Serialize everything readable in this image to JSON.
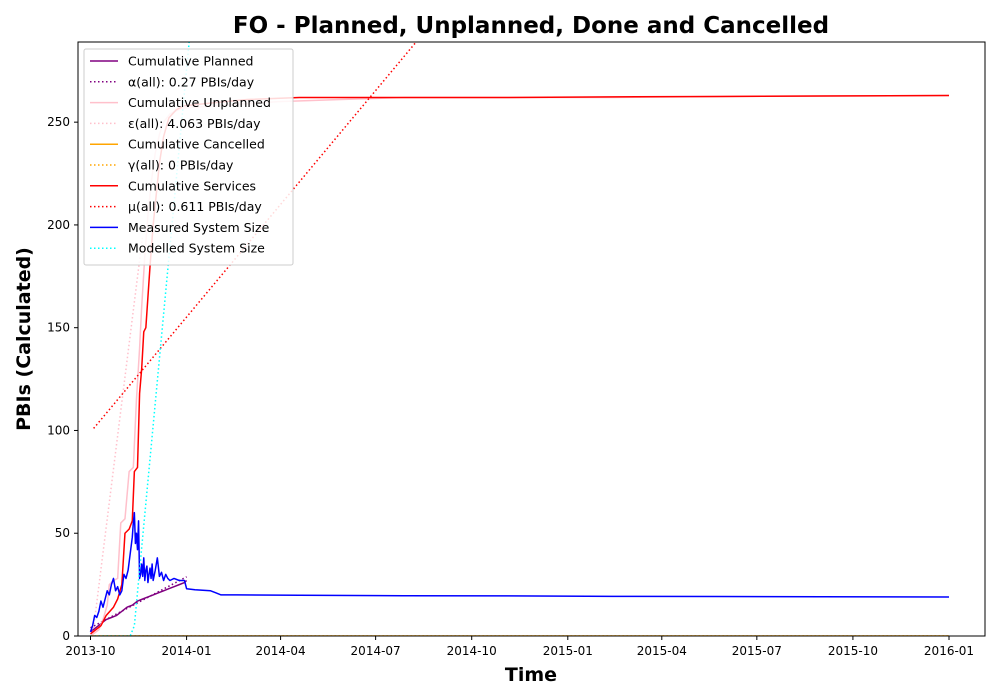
{
  "chart_data": {
    "type": "line",
    "title": "FO - Planned, Unplanned, Done  and Cancelled",
    "xlabel": "Time",
    "ylabel": "PBIs (Calculated)",
    "ylim": [
      0,
      289
    ],
    "xlim_days": [
      -7,
      470
    ],
    "x_origin_date": "2013-10-01",
    "x_ticks": [
      {
        "label": "2013-10",
        "day": 0
      },
      {
        "label": "2014-01",
        "day": 92
      },
      {
        "label": "2014-04",
        "day": 182
      },
      {
        "label": "2014-07",
        "day": 273
      },
      {
        "label": "2014-10",
        "day": 365
      },
      {
        "label": "2015-01",
        "day": 457
      },
      {
        "label": "2015-04",
        "day": 547
      },
      {
        "label": "2015-07",
        "day": 638
      },
      {
        "label": "2015-10",
        "day": 730
      },
      {
        "label": "2016-01",
        "day": 822
      }
    ],
    "y_ticks": [
      0,
      50,
      100,
      150,
      200,
      250
    ],
    "legend_position": "upper-left",
    "series": [
      {
        "name": "Cumulative Planned",
        "color": "#800080",
        "style": "solid",
        "points": [
          [
            0,
            2
          ],
          [
            5,
            4
          ],
          [
            10,
            6
          ],
          [
            15,
            8
          ],
          [
            20,
            9
          ],
          [
            25,
            10
          ],
          [
            30,
            12
          ],
          [
            35,
            14
          ],
          [
            40,
            15
          ],
          [
            45,
            17
          ],
          [
            50,
            18
          ],
          [
            55,
            19
          ],
          [
            60,
            20
          ],
          [
            65,
            21
          ],
          [
            70,
            22
          ],
          [
            75,
            23
          ],
          [
            80,
            24
          ],
          [
            85,
            25
          ],
          [
            90,
            26
          ],
          [
            92,
            27
          ]
        ]
      },
      {
        "name": "α(all): 0.27 PBIs/day",
        "color": "#800080",
        "style": "dotted",
        "points": [
          [
            0,
            4
          ],
          [
            92,
            28.8
          ]
        ]
      },
      {
        "name": "Cumulative Unplanned",
        "color": "#ffc0cb",
        "style": "solid",
        "points": [
          [
            0,
            0
          ],
          [
            8,
            3
          ],
          [
            12,
            8
          ],
          [
            16,
            15
          ],
          [
            18,
            25
          ],
          [
            22,
            27
          ],
          [
            26,
            28
          ],
          [
            29,
            55
          ],
          [
            33,
            57
          ],
          [
            37,
            80
          ],
          [
            41,
            82
          ],
          [
            44,
            115
          ],
          [
            47,
            140
          ],
          [
            49,
            160
          ],
          [
            52,
            185
          ],
          [
            55,
            205
          ],
          [
            58,
            220
          ],
          [
            62,
            235
          ],
          [
            66,
            244
          ],
          [
            70,
            250
          ],
          [
            76,
            254
          ],
          [
            84,
            256
          ],
          [
            92,
            257
          ],
          [
            120,
            258
          ],
          [
            180,
            260
          ],
          [
            240,
            261
          ],
          [
            300,
            262
          ],
          [
            400,
            262
          ],
          [
            500,
            262
          ],
          [
            600,
            262.5
          ],
          [
            700,
            262.7
          ],
          [
            822,
            263
          ]
        ]
      },
      {
        "name": "ε(all): 4.063 PBIs/day",
        "color": "#ffc0cb",
        "style": "dotted",
        "points": [
          [
            2,
            0
          ],
          [
            50,
            195
          ]
        ]
      },
      {
        "name": "Cumulative Cancelled",
        "color": "#ffa500",
        "style": "solid",
        "points": [
          [
            0,
            0
          ],
          [
            822,
            0
          ]
        ]
      },
      {
        "name": "γ(all): 0 PBIs/day",
        "color": "#ffa500",
        "style": "dotted",
        "points": [
          [
            0,
            0
          ],
          [
            822,
            0
          ]
        ]
      },
      {
        "name": "Cumulative Services",
        "color": "#ff0000",
        "style": "solid",
        "points": [
          [
            0,
            1
          ],
          [
            10,
            5
          ],
          [
            15,
            10
          ],
          [
            22,
            14
          ],
          [
            26,
            18
          ],
          [
            30,
            25
          ],
          [
            33,
            50
          ],
          [
            37,
            52
          ],
          [
            40,
            56
          ],
          [
            42,
            80
          ],
          [
            45,
            82
          ],
          [
            47,
            118
          ],
          [
            49,
            130
          ],
          [
            51,
            148
          ],
          [
            53,
            150
          ],
          [
            55,
            165
          ],
          [
            57,
            180
          ],
          [
            60,
            200
          ],
          [
            63,
            215
          ],
          [
            66,
            230
          ],
          [
            70,
            243
          ],
          [
            75,
            252
          ],
          [
            82,
            256
          ],
          [
            90,
            258
          ],
          [
            110,
            259
          ],
          [
            150,
            261
          ],
          [
            200,
            262
          ],
          [
            300,
            262
          ],
          [
            400,
            262
          ],
          [
            500,
            262.3
          ],
          [
            600,
            262.5
          ],
          [
            700,
            262.7
          ],
          [
            822,
            263
          ]
        ]
      },
      {
        "name": "μ(all): 0.611 PBIs/day",
        "color": "#ff0000",
        "style": "dotted",
        "points": [
          [
            3,
            101
          ],
          [
            320,
            294
          ]
        ]
      },
      {
        "name": "Measured System Size",
        "color": "#0000ff",
        "style": "solid",
        "points": [
          [
            0,
            2
          ],
          [
            2,
            5
          ],
          [
            4,
            10
          ],
          [
            6,
            9
          ],
          [
            8,
            12
          ],
          [
            10,
            17
          ],
          [
            12,
            14
          ],
          [
            14,
            18
          ],
          [
            16,
            22
          ],
          [
            18,
            20
          ],
          [
            20,
            25
          ],
          [
            22,
            28
          ],
          [
            24,
            22
          ],
          [
            26,
            24
          ],
          [
            28,
            20
          ],
          [
            30,
            22
          ],
          [
            32,
            30
          ],
          [
            34,
            28
          ],
          [
            36,
            32
          ],
          [
            38,
            40
          ],
          [
            40,
            48
          ],
          [
            41,
            55
          ],
          [
            42,
            60
          ],
          [
            43,
            45
          ],
          [
            44,
            50
          ],
          [
            45,
            42
          ],
          [
            46,
            56
          ],
          [
            47,
            28
          ],
          [
            48,
            30
          ],
          [
            49,
            35
          ],
          [
            50,
            29
          ],
          [
            51,
            38
          ],
          [
            52,
            27
          ],
          [
            53,
            32
          ],
          [
            54,
            34
          ],
          [
            55,
            26
          ],
          [
            56,
            30
          ],
          [
            57,
            33
          ],
          [
            58,
            28
          ],
          [
            59,
            35
          ],
          [
            60,
            27
          ],
          [
            62,
            32
          ],
          [
            64,
            38
          ],
          [
            66,
            29
          ],
          [
            68,
            31
          ],
          [
            70,
            27
          ],
          [
            72,
            30
          ],
          [
            74,
            28
          ],
          [
            76,
            27
          ],
          [
            80,
            28
          ],
          [
            85,
            27
          ],
          [
            90,
            27
          ],
          [
            92,
            23
          ],
          [
            100,
            22.5
          ],
          [
            115,
            22
          ],
          [
            120,
            21
          ],
          [
            125,
            20
          ],
          [
            140,
            20
          ],
          [
            200,
            19.8
          ],
          [
            300,
            19.6
          ],
          [
            400,
            19.5
          ],
          [
            500,
            19.3
          ],
          [
            600,
            19.2
          ],
          [
            700,
            19.1
          ],
          [
            822,
            19
          ]
        ]
      },
      {
        "name": "Modelled System Size",
        "color": "#00ffff",
        "style": "dotted",
        "points": [
          [
            0,
            0
          ],
          [
            38,
            0
          ],
          [
            42,
            5
          ],
          [
            95,
            292
          ]
        ]
      }
    ]
  }
}
